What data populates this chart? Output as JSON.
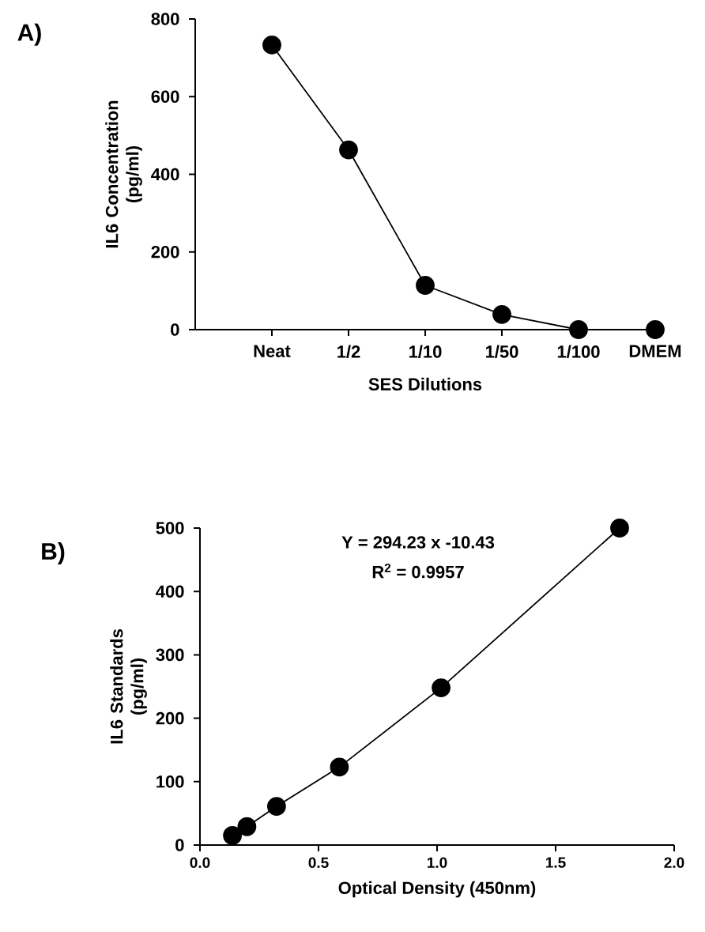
{
  "chart_data": [
    {
      "type": "line",
      "xlabel": "SES Dilutions",
      "ylabel": "IL6 Concentration (pg/ml)",
      "categories": [
        "Neat",
        "1/2",
        "1/10",
        "1/50",
        "1/100",
        "DMEM"
      ],
      "values": [
        733,
        463,
        114,
        39,
        0,
        0
      ],
      "color": "#000000",
      "marker": "circle",
      "ylim": [
        0,
        800
      ],
      "yticks": [
        0,
        200,
        400,
        600,
        800
      ],
      "annotations": [
        "A)"
      ]
    },
    {
      "type": "line",
      "xlabel": "Optical Density (450nm)",
      "ylabel": "IL6 Standards (pg/ml)",
      "x": [
        0.137,
        0.198,
        0.323,
        0.588,
        1.017,
        1.77
      ],
      "values": [
        15,
        29,
        61,
        123,
        248,
        500
      ],
      "color": "#000000",
      "marker": "circle",
      "xlim": [
        0,
        2.0
      ],
      "xticks": [
        {
          "value": 0,
          "label": "0.0"
        },
        {
          "value": 0.5,
          "label": "0.5"
        },
        {
          "value": 1.0,
          "label": "1.0"
        },
        {
          "value": 1.5,
          "label": "1.5"
        },
        {
          "value": 2.0,
          "label": "2.0"
        }
      ],
      "ylim": [
        0,
        500
      ],
      "yticks": [
        0,
        100,
        200,
        300,
        400,
        500
      ],
      "annotations": [
        "B)",
        "Y = 294.23 x -10.43",
        "R$^{2}$ = 0.9957"
      ]
    }
  ]
}
